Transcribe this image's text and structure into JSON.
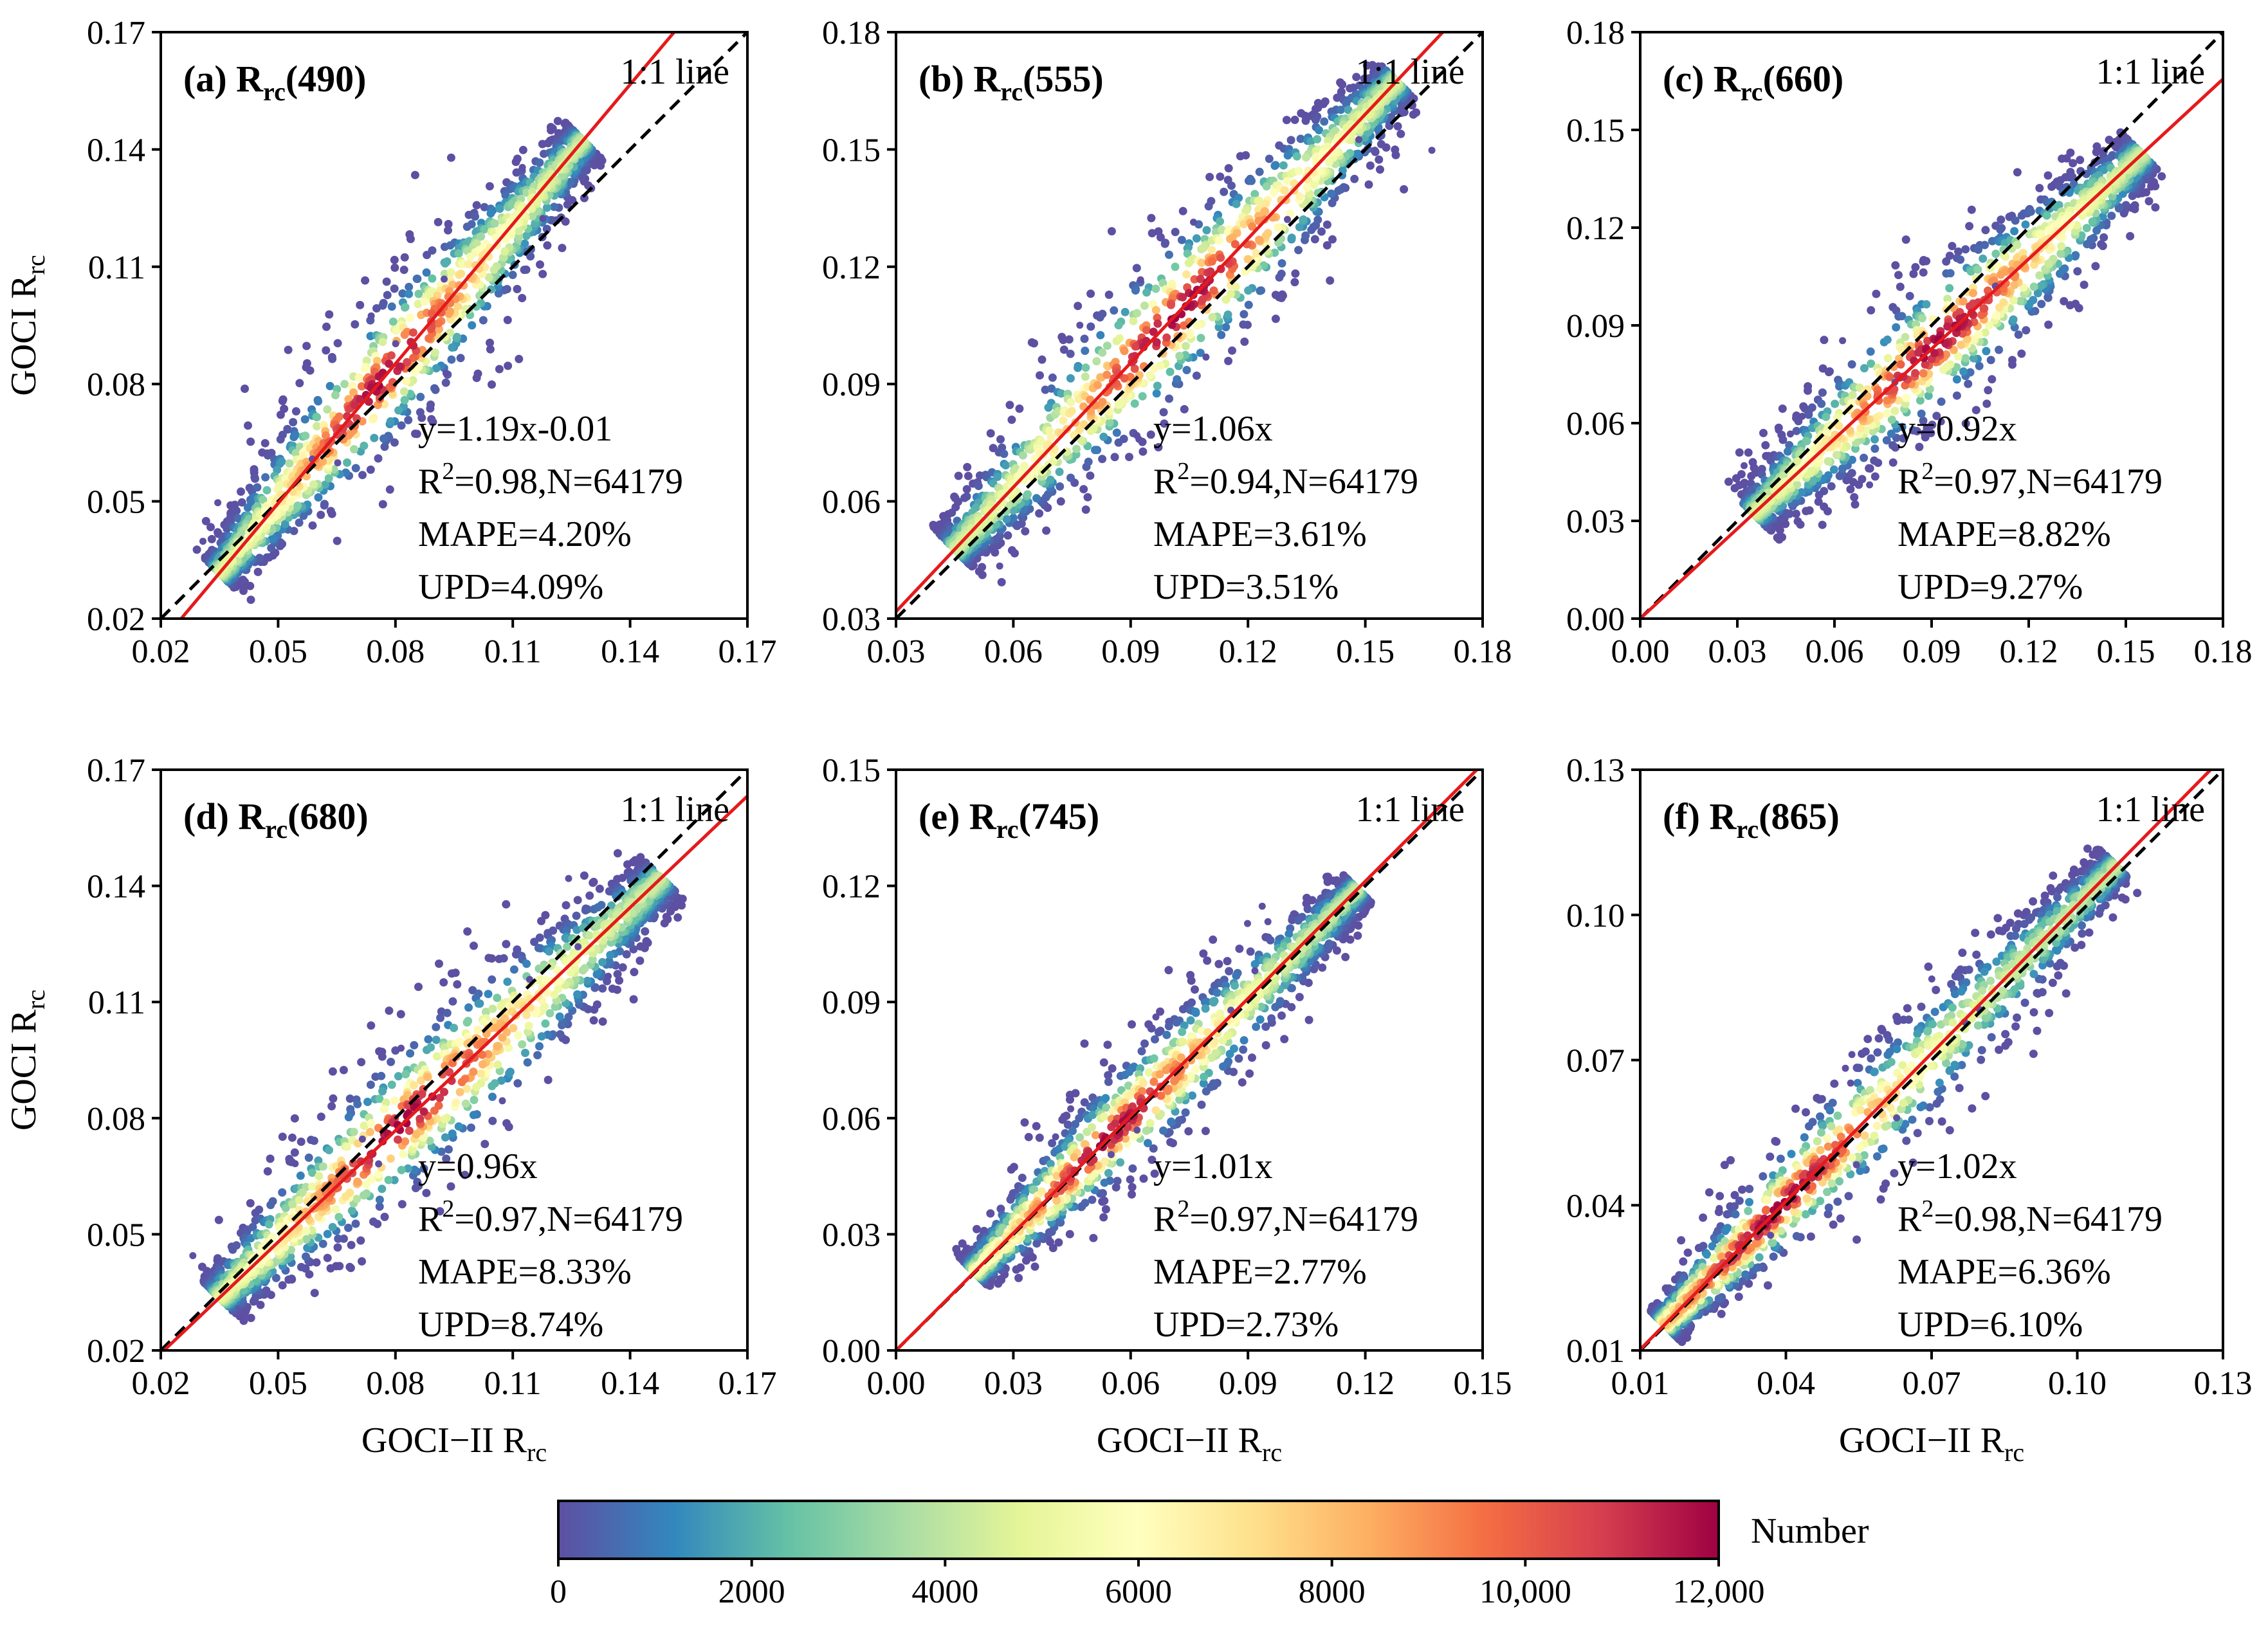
{
  "chart_data": [
    {
      "type": "scatter",
      "panel_label": "(a)",
      "title_main": "R",
      "title_sub": "rc",
      "title_band": "(490)",
      "one_to_one_label": "1:1 line",
      "xlim": [
        0.02,
        0.17
      ],
      "ylim": [
        0.02,
        0.17
      ],
      "xticks": [
        "0.02",
        "0.05",
        "0.08",
        "0.11",
        "0.14",
        "0.17"
      ],
      "yticks": [
        "0.02",
        "0.05",
        "0.08",
        "0.11",
        "0.14",
        "0.17"
      ],
      "ylabel_main": "GOCI R",
      "ylabel_sub": "rc",
      "xlabel_main": "",
      "xlabel_sub": "",
      "fit": {
        "slope": 1.19,
        "intercept": -0.01
      },
      "equation": "y=1.19x-0.01",
      "r2_prefix": "R",
      "r2_sup": "2",
      "r2_rest": "=0.98,N=64179",
      "mape": "MAPE=4.20%",
      "upd": "UPD=4.09%",
      "cloud": {
        "start": 0.035,
        "end": 0.128,
        "spread": 0.007,
        "peak": 0.077
      }
    },
    {
      "type": "scatter",
      "panel_label": "(b)",
      "title_main": "R",
      "title_sub": "rc",
      "title_band": "(555)",
      "one_to_one_label": "1:1 line",
      "xlim": [
        0.03,
        0.18
      ],
      "ylim": [
        0.03,
        0.18
      ],
      "xticks": [
        "0.03",
        "0.06",
        "0.09",
        "0.12",
        "0.15",
        "0.18"
      ],
      "yticks": [
        "0.03",
        "0.06",
        "0.09",
        "0.12",
        "0.15",
        "0.18"
      ],
      "ylabel_main": "",
      "ylabel_sub": "",
      "xlabel_main": "",
      "xlabel_sub": "",
      "fit": {
        "slope": 1.06,
        "intercept": 0.0
      },
      "equation": "y=1.06x",
      "r2_prefix": "R",
      "r2_sup": "2",
      "r2_rest": "=0.94,N=64179",
      "mape": "MAPE=3.61%",
      "upd": "UPD=3.51%",
      "cloud": {
        "start": 0.045,
        "end": 0.158,
        "spread": 0.008,
        "peak": 0.102
      }
    },
    {
      "type": "scatter",
      "panel_label": "(c)",
      "title_main": "R",
      "title_sub": "rc",
      "title_band": "(660)",
      "one_to_one_label": "1:1 line",
      "xlim": [
        0.0,
        0.18
      ],
      "ylim": [
        0.0,
        0.18
      ],
      "xticks": [
        "0.00",
        "0.03",
        "0.06",
        "0.09",
        "0.12",
        "0.15",
        "0.18"
      ],
      "yticks": [
        "0.00",
        "0.03",
        "0.06",
        "0.09",
        "0.12",
        "0.15",
        "0.18"
      ],
      "ylabel_main": "",
      "ylabel_sub": "",
      "xlabel_main": "",
      "xlabel_sub": "",
      "fit": {
        "slope": 0.92,
        "intercept": 0.0
      },
      "equation": "y=0.92x",
      "r2_prefix": "R",
      "r2_sup": "2",
      "r2_rest": "=0.97,N=64179",
      "mape": "MAPE=8.82%",
      "upd": "UPD=9.27%",
      "cloud": {
        "start": 0.035,
        "end": 0.155,
        "spread": 0.009,
        "peak": 0.092
      }
    },
    {
      "type": "scatter",
      "panel_label": "(d)",
      "title_main": "R",
      "title_sub": "rc",
      "title_band": "(680)",
      "one_to_one_label": "1:1 line",
      "xlim": [
        0.02,
        0.17
      ],
      "ylim": [
        0.02,
        0.17
      ],
      "xticks": [
        "0.02",
        "0.05",
        "0.08",
        "0.11",
        "0.14",
        "0.17"
      ],
      "yticks": [
        "0.02",
        "0.05",
        "0.08",
        "0.11",
        "0.14",
        "0.17"
      ],
      "ylabel_main": "GOCI R",
      "ylabel_sub": "rc",
      "xlabel_main": "GOCI−II R",
      "xlabel_sub": "rc",
      "fit": {
        "slope": 0.96,
        "intercept": 0.0
      },
      "equation": "y=0.96x",
      "r2_prefix": "R",
      "r2_sup": "2",
      "r2_rest": "=0.97,N=64179",
      "mape": "MAPE=8.33%",
      "upd": "UPD=8.74%",
      "cloud": {
        "start": 0.035,
        "end": 0.148,
        "spread": 0.008,
        "peak": 0.083
      }
    },
    {
      "type": "scatter",
      "panel_label": "(e)",
      "title_main": "R",
      "title_sub": "rc",
      "title_band": "(745)",
      "one_to_one_label": "1:1 line",
      "xlim": [
        0.0,
        0.15
      ],
      "ylim": [
        0.0,
        0.15
      ],
      "xticks": [
        "0.00",
        "0.03",
        "0.06",
        "0.09",
        "0.12",
        "0.15"
      ],
      "yticks": [
        "0.00",
        "0.03",
        "0.06",
        "0.09",
        "0.12",
        "0.15"
      ],
      "ylabel_main": "",
      "ylabel_sub": "",
      "xlabel_main": "GOCI−II R",
      "xlabel_sub": "rc",
      "fit": {
        "slope": 1.01,
        "intercept": 0.0
      },
      "equation": "y=1.01x",
      "r2_prefix": "R",
      "r2_sup": "2",
      "r2_rest": "=0.97,N=64179",
      "mape": "MAPE=2.77%",
      "upd": "UPD=2.73%",
      "cloud": {
        "start": 0.02,
        "end": 0.118,
        "spread": 0.006,
        "peak": 0.055
      }
    },
    {
      "type": "scatter",
      "panel_label": "(f)",
      "title_main": "R",
      "title_sub": "rc",
      "title_band": "(865)",
      "one_to_one_label": "1:1 line",
      "xlim": [
        0.01,
        0.13
      ],
      "ylim": [
        0.01,
        0.13
      ],
      "xticks": [
        "0.01",
        "0.04",
        "0.07",
        "0.10",
        "0.13"
      ],
      "yticks": [
        "0.01",
        "0.04",
        "0.07",
        "0.10",
        "0.13"
      ],
      "ylabel_main": "",
      "ylabel_sub": "",
      "xlabel_main": "GOCI−II R",
      "xlabel_sub": "rc",
      "fit": {
        "slope": 1.02,
        "intercept": 0.0
      },
      "equation": "y=1.02x",
      "r2_prefix": "R",
      "r2_sup": "2",
      "r2_rest": "=0.98,N=64179",
      "mape": "MAPE=6.36%",
      "upd": "UPD=6.10%",
      "cloud": {
        "start": 0.015,
        "end": 0.108,
        "spread": 0.005,
        "peak": 0.038
      }
    }
  ],
  "colorbar": {
    "label": "Number",
    "ticks": [
      "0",
      "2000",
      "4000",
      "6000",
      "8000",
      "10,000",
      "12,000"
    ],
    "range": [
      0,
      12000
    ],
    "colors": [
      "#5e4fa2",
      "#3288bd",
      "#66c2a5",
      "#abdda4",
      "#e6f598",
      "#ffffbf",
      "#fee08b",
      "#fdae61",
      "#f46d43",
      "#d53e4f",
      "#9e0142"
    ]
  },
  "style": {
    "fit_line_color": "#e41a1c",
    "one_to_one_color": "#000000"
  }
}
